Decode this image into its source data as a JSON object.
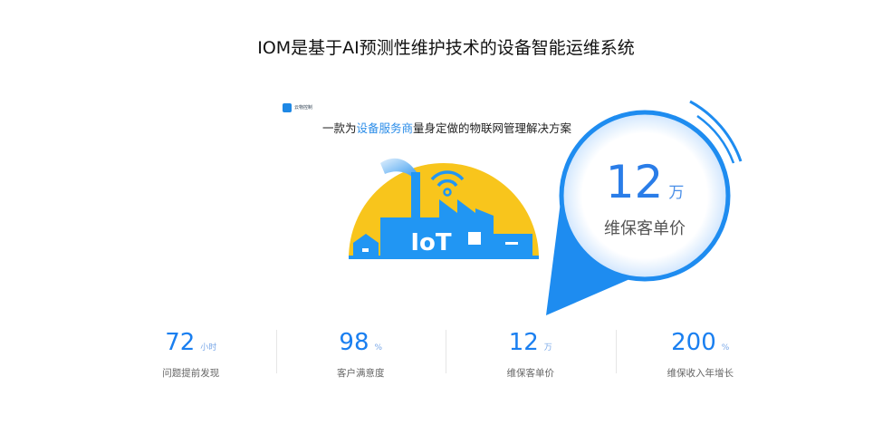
{
  "title": "IOM是基于AI预测性维护技术的设备智能运维系统",
  "hero": {
    "logo_text": "云物控制",
    "slogan_pre": "一款为",
    "slogan_highlight": "设备服务商",
    "slogan_post": "量身定做的物联网管理解决方案",
    "illustration_text": "IoT",
    "bubble_value": "12",
    "bubble_unit": "万",
    "bubble_label": "维保客单价"
  },
  "colors": {
    "accent": "#1a7ff0",
    "sun": "#f8c51c",
    "factory": "#2196f3"
  },
  "stats": [
    {
      "value": "72",
      "unit": "小时",
      "label": "问题提前发现"
    },
    {
      "value": "98",
      "unit": "%",
      "label": "客户满意度"
    },
    {
      "value": "12",
      "unit": "万",
      "label": "维保客单价"
    },
    {
      "value": "200",
      "unit": "%",
      "label": "维保收入年增长"
    }
  ]
}
